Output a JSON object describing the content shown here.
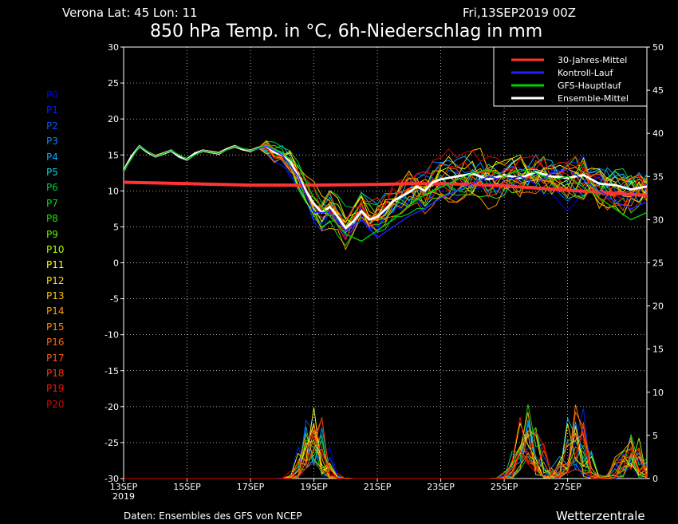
{
  "header": {
    "location_line": "Verona   Lat: 45 Lon: 11",
    "run": "Fri,13SEP2019 00Z",
    "title": "850 hPa Temp. in °C, 6h-Niederschlag in mm"
  },
  "footer": {
    "source": "Daten: Ensembles des GFS von NCEP",
    "brand": "Wetterzentrale"
  },
  "members": [
    {
      "label": "P0",
      "color": "#0000ff"
    },
    {
      "label": "P1",
      "color": "#0022ff"
    },
    {
      "label": "P2",
      "color": "#0055ff"
    },
    {
      "label": "P3",
      "color": "#0088ff"
    },
    {
      "label": "P4",
      "color": "#00aaff"
    },
    {
      "label": "P5",
      "color": "#00ccdd"
    },
    {
      "label": "P6",
      "color": "#00cc44"
    },
    {
      "label": "P7",
      "color": "#00dd22"
    },
    {
      "label": "P8",
      "color": "#22dd00"
    },
    {
      "label": "P9",
      "color": "#66ee00"
    },
    {
      "label": "P10",
      "color": "#aaff00"
    },
    {
      "label": "P11",
      "color": "#ffff00"
    },
    {
      "label": "P12",
      "color": "#ffdd00"
    },
    {
      "label": "P13",
      "color": "#ffbb00"
    },
    {
      "label": "P14",
      "color": "#ff9900"
    },
    {
      "label": "P15",
      "color": "#ff8800"
    },
    {
      "label": "P16",
      "color": "#ff6600"
    },
    {
      "label": "P17",
      "color": "#ff5500"
    },
    {
      "label": "P18",
      "color": "#ff3300"
    },
    {
      "label": "P19",
      "color": "#ff1100"
    },
    {
      "label": "P20",
      "color": "#dd0000"
    }
  ],
  "chart_data": {
    "type": "line",
    "title": "850 hPa Temp. in °C, 6h-Niederschlag in mm",
    "x_start": "13SEP2019",
    "x_ticks": [
      "13SEP",
      "15SEP",
      "17SEP",
      "19SEP",
      "21SEP",
      "23SEP",
      "25SEP",
      "27SEP"
    ],
    "x_sub": "2019",
    "x_range_days": [
      0,
      16.5
    ],
    "y_left": {
      "range": [
        -30,
        30
      ],
      "ticks": [
        30,
        25,
        20,
        15,
        10,
        5,
        0,
        -5,
        -10,
        -15,
        -20,
        -25,
        -30
      ]
    },
    "y_right": {
      "range": [
        0,
        50
      ],
      "ticks": [
        50,
        45,
        40,
        35,
        30,
        25,
        20,
        15,
        10,
        5,
        0
      ]
    },
    "grid": true,
    "legend_position": "top-right",
    "legend": [
      {
        "name": "30-Jahres-Mittel",
        "color": "#ff3333"
      },
      {
        "name": "Kontroll-Lauf",
        "color": "#2222ff"
      },
      {
        "name": "GFS-Hauptlauf",
        "color": "#00cc00"
      },
      {
        "name": "Ensemble-Mittel",
        "color": "#ffffff"
      }
    ],
    "series": [
      {
        "name": "30-Jahres-Mittel",
        "color": "#ff3333",
        "x": [
          0,
          2,
          4,
          6,
          8,
          9,
          10,
          11,
          12,
          13,
          14,
          15,
          16,
          16.5
        ],
        "y": [
          11.2,
          11.0,
          10.8,
          10.8,
          10.9,
          11.0,
          11.0,
          10.9,
          10.7,
          10.4,
          10.1,
          9.8,
          9.5,
          9.4
        ]
      },
      {
        "name": "Ensemble-Mittel",
        "color": "#ffffff",
        "x": [
          0,
          0.25,
          0.5,
          0.75,
          1,
          1.25,
          1.5,
          1.75,
          2,
          2.25,
          2.5,
          2.75,
          3,
          3.25,
          3.5,
          3.75,
          4,
          4.25,
          4.5,
          4.75,
          5,
          5.25,
          5.5,
          5.75,
          6,
          6.25,
          6.5,
          6.75,
          7,
          7.25,
          7.5,
          7.75,
          8,
          8.25,
          8.5,
          8.75,
          9,
          9.25,
          9.5,
          9.75,
          10,
          10.5,
          11,
          11.5,
          12,
          12.5,
          13,
          13.5,
          14,
          14.5,
          15,
          15.5,
          16,
          16.5
        ],
        "y": [
          12.8,
          14.8,
          16.2,
          15.4,
          14.8,
          15.2,
          15.6,
          14.8,
          14.4,
          15.2,
          15.6,
          15.4,
          15.2,
          15.8,
          16.2,
          15.8,
          15.6,
          16.0,
          16.2,
          15.4,
          15.0,
          14.2,
          12.0,
          10.0,
          8.2,
          7.0,
          7.8,
          6.4,
          4.8,
          5.8,
          7.2,
          6.0,
          6.4,
          7.4,
          8.6,
          9.2,
          9.8,
          10.6,
          10.0,
          11.2,
          11.6,
          12.0,
          12.4,
          11.6,
          12.2,
          11.8,
          12.6,
          12.0,
          11.8,
          12.2,
          11.0,
          10.8,
          10.2,
          10.6
        ]
      },
      {
        "name": "Kontroll-Lauf",
        "color": "#2222ff",
        "x": [
          0,
          0.5,
          1,
          1.5,
          2,
          2.5,
          3,
          3.5,
          4,
          4.5,
          5,
          5.5,
          6,
          6.5,
          7,
          7.5,
          8,
          8.5,
          9,
          9.5,
          10,
          10.5,
          11,
          11.5,
          12,
          12.5,
          13,
          13.5,
          14,
          14.5,
          15,
          15.5,
          16,
          16.5
        ],
        "y": [
          12.8,
          16.2,
          14.8,
          15.6,
          14.4,
          15.6,
          15.2,
          16.2,
          15.6,
          16.2,
          15.0,
          12.0,
          7.0,
          7.0,
          4.5,
          6.0,
          3.5,
          5.0,
          6.5,
          7.5,
          9.0,
          10.0,
          11.0,
          12.0,
          11.5,
          12.0,
          11.0,
          12.5,
          13.0,
          11.5,
          10.0,
          8.5,
          7.5,
          8.5
        ]
      },
      {
        "name": "GFS-Hauptlauf",
        "color": "#00cc00",
        "x": [
          0,
          0.5,
          1,
          1.5,
          2,
          2.5,
          3,
          3.5,
          4,
          4.5,
          5,
          5.5,
          6,
          6.5,
          7,
          7.5,
          8,
          8.5,
          9,
          9.5,
          10,
          10.5,
          11,
          11.5,
          12,
          12.5,
          13,
          13.5,
          14,
          14.5,
          15,
          15.5,
          16,
          16.5
        ],
        "y": [
          12.8,
          16.2,
          14.8,
          15.6,
          14.4,
          15.6,
          15.2,
          16.2,
          15.6,
          16.4,
          15.2,
          13.5,
          9.0,
          6.5,
          4.0,
          3.0,
          4.5,
          6.0,
          8.0,
          9.5,
          10.5,
          11.5,
          12.5,
          13.0,
          12.0,
          13.0,
          12.5,
          11.5,
          12.0,
          10.5,
          9.0,
          7.5,
          6.0,
          7.0
        ]
      }
    ],
    "precip_peaks_mm": [
      {
        "day": 6.0,
        "max": 8.6
      },
      {
        "day": 12.75,
        "max": 9.2
      },
      {
        "day": 14.25,
        "max": 8.6
      },
      {
        "day": 16.0,
        "max": 5.8
      }
    ]
  }
}
